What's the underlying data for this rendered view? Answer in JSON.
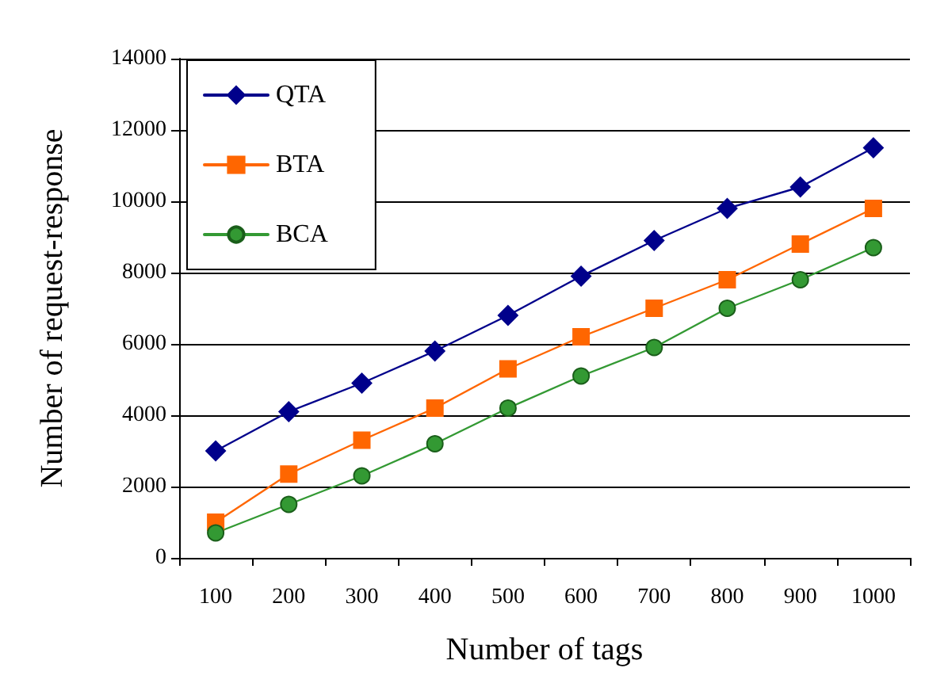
{
  "chart_data": {
    "type": "line",
    "xlabel": "Number of tags",
    "ylabel": "Number of request-response",
    "categories": [
      "100",
      "200",
      "300",
      "400",
      "500",
      "600",
      "700",
      "800",
      "900",
      "1000"
    ],
    "series": [
      {
        "name": "QTA",
        "color": "#00008b",
        "marker": "diamond",
        "values": [
          3000,
          4100,
          4900,
          5800,
          6800,
          7900,
          8900,
          9800,
          10400,
          11500
        ]
      },
      {
        "name": "BTA",
        "color": "#ff6600",
        "marker": "square",
        "values": [
          1000,
          2350,
          3300,
          4200,
          5300,
          6200,
          7000,
          7800,
          8800,
          9800
        ]
      },
      {
        "name": "BCA",
        "color": "#339933",
        "marker": "circle",
        "values": [
          700,
          1500,
          2300,
          3200,
          4200,
          5100,
          5900,
          7000,
          7800,
          8700
        ]
      }
    ],
    "ylim": [
      0,
      14000
    ],
    "yticks": [
      0,
      2000,
      4000,
      6000,
      8000,
      10000,
      12000,
      14000
    ],
    "grid": "y",
    "legend": "top left",
    "line_style": "solid"
  }
}
